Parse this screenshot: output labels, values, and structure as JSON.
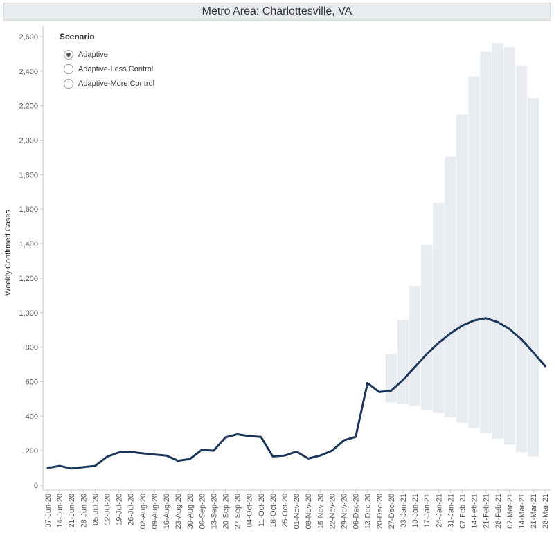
{
  "title": "Metro Area: Charlottesville, VA",
  "legend": {
    "title": "Scenario",
    "options": [
      {
        "label": "Adaptive",
        "checked": true
      },
      {
        "label": "Adaptive-Less Control",
        "checked": false
      },
      {
        "label": "Adaptive-More Control",
        "checked": false
      }
    ]
  },
  "chart_data": {
    "type": "line",
    "ylabel": "Weekly Confirmed Cases",
    "ylim": [
      0,
      2600
    ],
    "yticks": [
      0,
      200,
      400,
      600,
      800,
      1000,
      1200,
      1400,
      1600,
      1800,
      2000,
      2200,
      2400,
      2600
    ],
    "ytick_labels": [
      "0",
      "200",
      "400",
      "600",
      "800",
      "1,000",
      "1,200",
      "1,400",
      "1,600",
      "1,800",
      "2,000",
      "2,200",
      "2,400",
      "2,600"
    ],
    "categories": [
      "07-Jun-20",
      "14-Jun-20",
      "21-Jun-20",
      "28-Jun-20",
      "05-Jul-20",
      "12-Jul-20",
      "19-Jul-20",
      "26-Jul-20",
      "02-Aug-20",
      "09-Aug-20",
      "16-Aug-20",
      "23-Aug-20",
      "30-Aug-20",
      "06-Sep-20",
      "13-Sep-20",
      "20-Sep-20",
      "27-Sep-20",
      "04-Oct-20",
      "11-Oct-20",
      "18-Oct-20",
      "25-Oct-20",
      "01-Nov-20",
      "08-Nov-20",
      "15-Nov-20",
      "22-Nov-20",
      "29-Nov-20",
      "06-Dec-20",
      "13-Dec-20",
      "20-Dec-20",
      "27-Dec-20",
      "03-Jan-21",
      "10-Jan-21",
      "17-Jan-21",
      "24-Jan-21",
      "31-Jan-21",
      "07-Feb-21",
      "14-Feb-21",
      "21-Feb-21",
      "28-Feb-21",
      "07-Mar-21",
      "14-Mar-21",
      "21-Mar-21",
      "28-Mar-21"
    ],
    "series": [
      {
        "values": [
          100,
          112,
          97,
          105,
          112,
          165,
          190,
          193,
          185,
          178,
          172,
          142,
          152,
          205,
          200,
          277,
          295,
          285,
          280,
          167,
          172,
          195,
          155,
          172,
          200,
          260,
          280,
          592,
          540,
          548,
          610,
          685,
          760,
          825,
          880,
          925,
          955,
          968,
          945,
          905,
          845,
          770,
          690
        ],
        "color": "#1b365d"
      }
    ],
    "band": {
      "start_index": 29,
      "color": "#e8ecf0",
      "upper": [
        762,
        958,
        1156,
        1393,
        1638,
        1905,
        2150,
        2370,
        2515,
        2565,
        2540,
        2430,
        2245
      ],
      "lower": [
        478,
        468,
        458,
        435,
        418,
        392,
        362,
        330,
        300,
        268,
        234,
        190,
        165
      ]
    },
    "grid": false
  }
}
